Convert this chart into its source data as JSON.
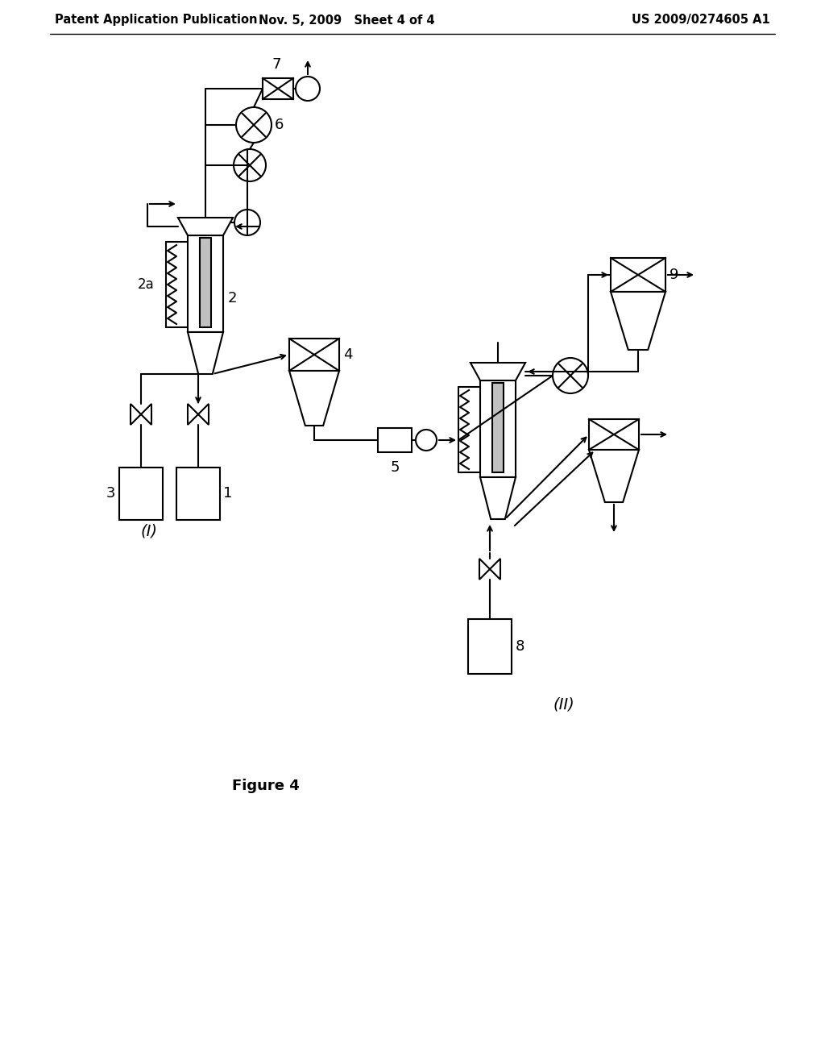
{
  "title_left": "Patent Application Publication",
  "title_mid": "Nov. 5, 2009   Sheet 4 of 4",
  "title_right": "US 2009/0274605 A1",
  "figure_label": "Figure 4",
  "bg_color": "#ffffff",
  "line_color": "#000000",
  "line_width": 1.5,
  "fig_width": 10.24,
  "fig_height": 13.2
}
